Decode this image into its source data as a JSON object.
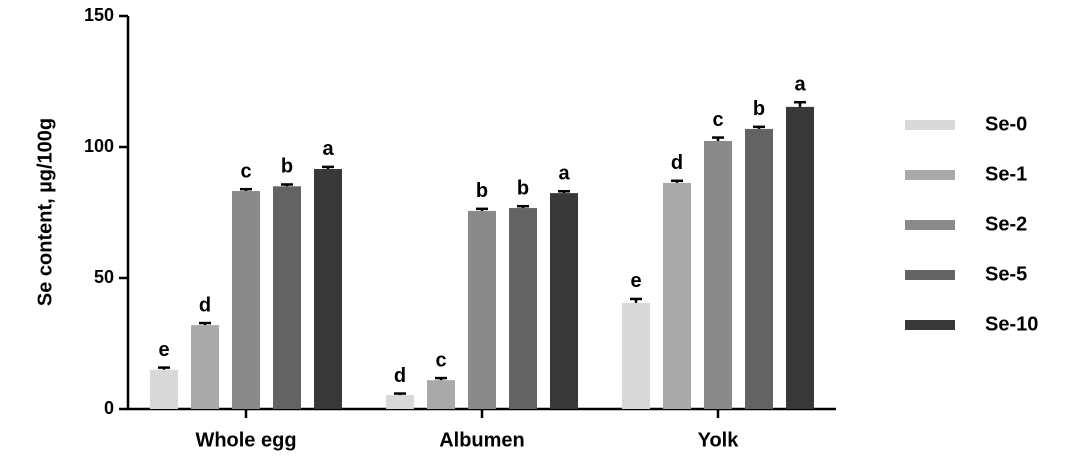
{
  "chart_data": {
    "type": "bar",
    "y_label": "Se content, µg/100g",
    "categories": [
      "Whole egg",
      "Albumen",
      "Yolk"
    ],
    "ylim": [
      0,
      150
    ],
    "yticks": [
      0,
      50,
      100,
      150
    ],
    "series": [
      {
        "name": "Se-0",
        "color": "#d9d9d9",
        "values": [
          15,
          5.3,
          40.5
        ],
        "errors": [
          0.8,
          0.6,
          1.5
        ],
        "letters": [
          "e",
          "d",
          "e"
        ]
      },
      {
        "name": "Se-1",
        "color": "#a9a9a9",
        "values": [
          32,
          11,
          86.3
        ],
        "errors": [
          0.8,
          0.8,
          0.8
        ],
        "letters": [
          "d",
          "c",
          "d"
        ]
      },
      {
        "name": "Se-2",
        "color": "#8a8a8a",
        "values": [
          83.2,
          75.6,
          102.3
        ],
        "errors": [
          0.7,
          0.8,
          1.3
        ],
        "letters": [
          "c",
          "b",
          "c"
        ]
      },
      {
        "name": "Se-5",
        "color": "#636363",
        "values": [
          85,
          76.7,
          106.9
        ],
        "errors": [
          0.7,
          0.7,
          0.8
        ],
        "letters": [
          "b",
          "b",
          "b"
        ]
      },
      {
        "name": "Se-10",
        "color": "#383838",
        "values": [
          91.6,
          82.4,
          115.3
        ],
        "errors": [
          0.8,
          0.7,
          1.8
        ],
        "letters": [
          "a",
          "a",
          "a"
        ]
      }
    ]
  }
}
